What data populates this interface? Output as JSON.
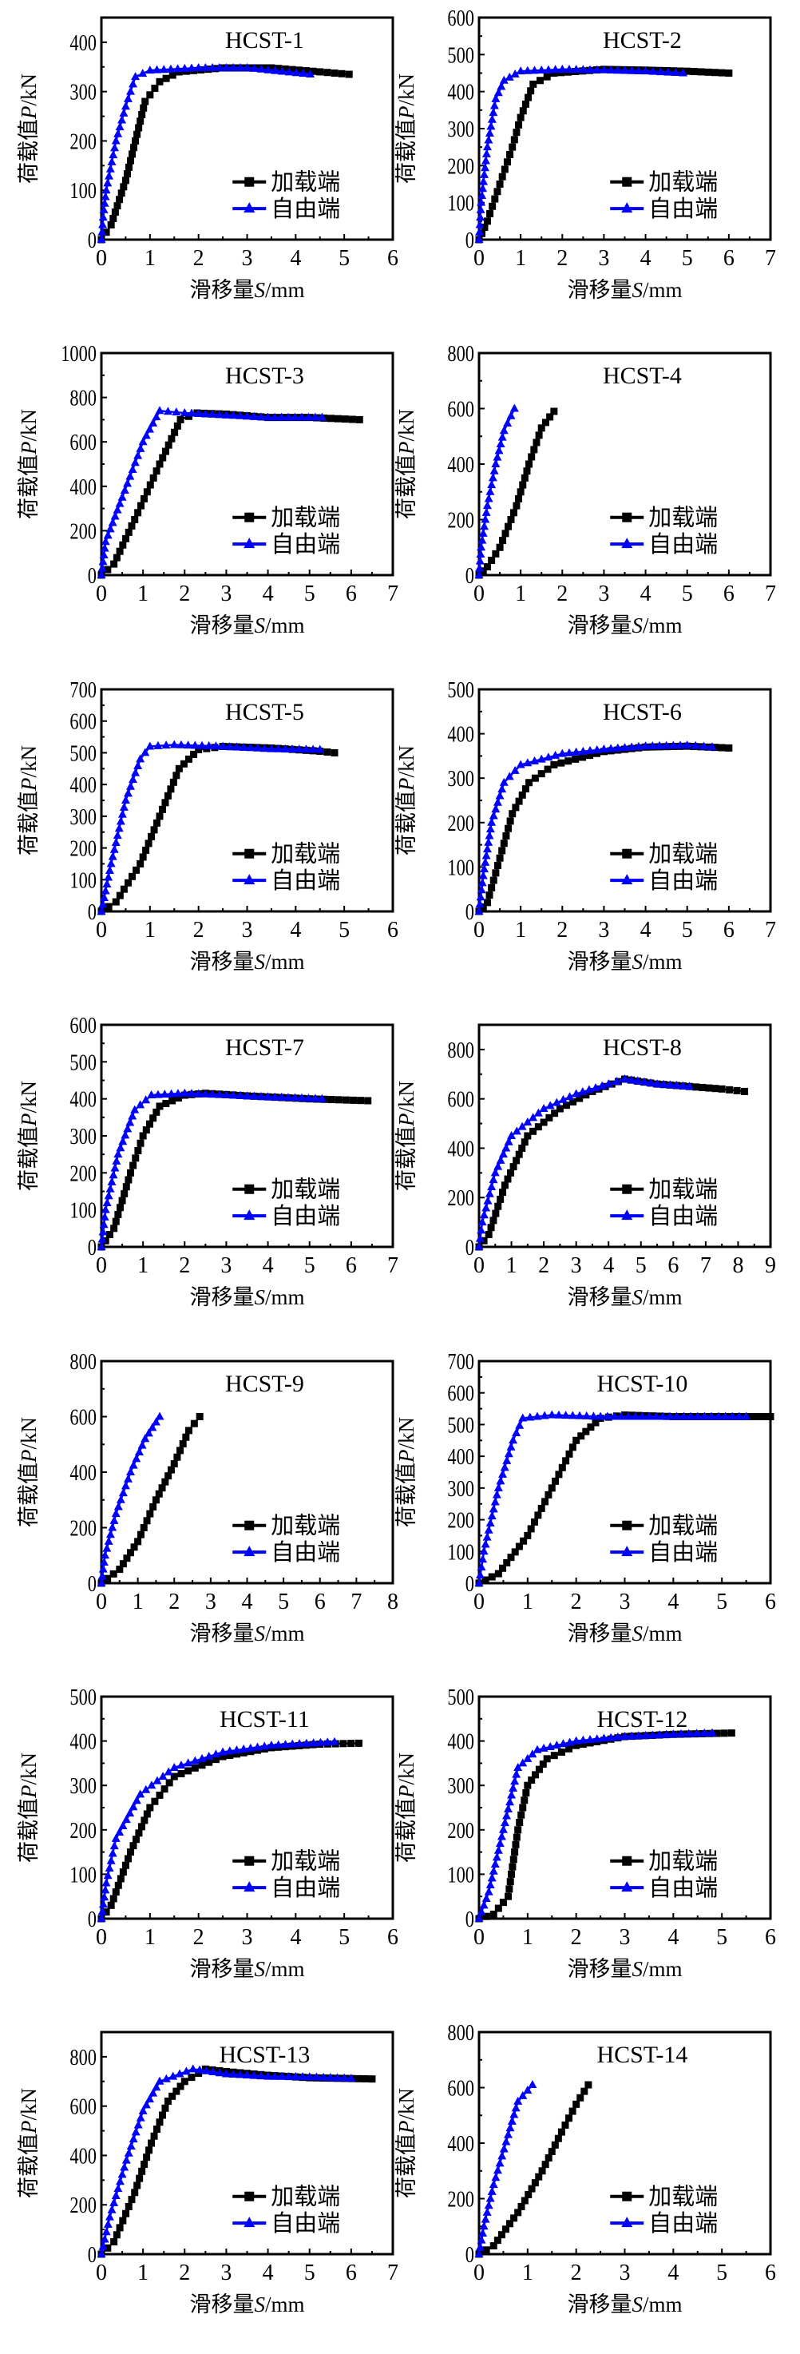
{
  "common": {
    "xlabel_cn": "滑移量",
    "xlabel_var": "S",
    "xlabel_unit": "/mm",
    "ylabel_cn": "荷载值",
    "ylabel_var": "P",
    "ylabel_unit": "/kN",
    "legend": [
      "加载端",
      "自由端"
    ],
    "colors": {
      "loading": "#000000",
      "free": "#0000ff"
    }
  },
  "chart_data": [
    {
      "type": "line",
      "title": "HCST-1",
      "xlim": [
        0,
        6
      ],
      "xticks": [
        0,
        1,
        2,
        3,
        4,
        5,
        6
      ],
      "ylim": [
        0,
        450
      ],
      "yticks": [
        0,
        100,
        200,
        300,
        400
      ],
      "series": [
        {
          "name": "加载端",
          "x": [
            0,
            0.2,
            0.5,
            0.7,
            0.9,
            1.2,
            1.6,
            2.5,
            3.5,
            4.5,
            5.1
          ],
          "y": [
            0,
            30,
            120,
            200,
            280,
            320,
            340,
            348,
            348,
            340,
            335
          ]
        },
        {
          "name": "自由端",
          "x": [
            0,
            0.05,
            0.1,
            0.3,
            0.5,
            0.7,
            1,
            2,
            3,
            4.3
          ],
          "y": [
            0,
            60,
            100,
            200,
            270,
            330,
            343,
            348,
            348,
            335
          ]
        }
      ]
    },
    {
      "type": "line",
      "title": "HCST-2",
      "xlim": [
        0,
        7
      ],
      "xticks": [
        0,
        1,
        2,
        3,
        4,
        5,
        6,
        7
      ],
      "ylim": [
        0,
        600
      ],
      "yticks": [
        0,
        100,
        200,
        300,
        400,
        500,
        600
      ],
      "series": [
        {
          "name": "加载端",
          "x": [
            0,
            0.2,
            0.5,
            0.8,
            1,
            1.3,
            1.8,
            3,
            4,
            5,
            6
          ],
          "y": [
            0,
            50,
            150,
            250,
            330,
            420,
            450,
            460,
            458,
            455,
            450
          ]
        },
        {
          "name": "自由端",
          "x": [
            0,
            0.05,
            0.2,
            0.4,
            0.6,
            1,
            2,
            3,
            4,
            4.9
          ],
          "y": [
            0,
            100,
            250,
            380,
            430,
            455,
            460,
            458,
            455,
            450
          ]
        }
      ]
    },
    {
      "type": "line",
      "title": "HCST-3",
      "xlim": [
        0,
        7
      ],
      "xticks": [
        0,
        1,
        2,
        3,
        4,
        5,
        6,
        7
      ],
      "ylim": [
        0,
        1000
      ],
      "yticks": [
        0,
        200,
        400,
        600,
        800,
        1000
      ],
      "series": [
        {
          "name": "加载端",
          "x": [
            0,
            0.3,
            0.8,
            1.4,
            1.9,
            2.3,
            3,
            4,
            5,
            6.2
          ],
          "y": [
            0,
            50,
            250,
            500,
            700,
            730,
            725,
            710,
            710,
            700
          ]
        },
        {
          "name": "自由端",
          "x": [
            0,
            0.1,
            0.5,
            1,
            1.4,
            2,
            3,
            4,
            5.3
          ],
          "y": [
            0,
            150,
            350,
            600,
            740,
            730,
            720,
            710,
            710
          ]
        }
      ]
    },
    {
      "type": "line",
      "title": "HCST-4",
      "xlim": [
        0,
        7
      ],
      "xticks": [
        0,
        1,
        2,
        3,
        4,
        5,
        6,
        7
      ],
      "ylim": [
        0,
        800
      ],
      "yticks": [
        0,
        200,
        400,
        600,
        800
      ],
      "series": [
        {
          "name": "加载端",
          "x": [
            0,
            0.2,
            0.5,
            0.9,
            1.2,
            1.5,
            1.8
          ],
          "y": [
            0,
            30,
            100,
            250,
            400,
            530,
            590
          ]
        },
        {
          "name": "自由端",
          "x": [
            0,
            0.05,
            0.2,
            0.4,
            0.6,
            0.85
          ],
          "y": [
            0,
            100,
            250,
            400,
            520,
            600
          ]
        }
      ]
    },
    {
      "type": "line",
      "title": "HCST-5",
      "xlim": [
        0,
        6
      ],
      "xticks": [
        0,
        1,
        2,
        3,
        4,
        5,
        6
      ],
      "ylim": [
        0,
        700
      ],
      "yticks": [
        0,
        100,
        200,
        300,
        400,
        500,
        600,
        700
      ],
      "series": [
        {
          "name": "加载端",
          "x": [
            0,
            0.3,
            0.8,
            1.2,
            1.6,
            2,
            2.5,
            3.5,
            4.5,
            4.8
          ],
          "y": [
            0,
            30,
            150,
            300,
            450,
            510,
            520,
            515,
            505,
            500
          ]
        },
        {
          "name": "自由端",
          "x": [
            0,
            0.2,
            0.5,
            0.8,
            1,
            1.5,
            2.5,
            3.5,
            4.5
          ],
          "y": [
            0,
            150,
            350,
            480,
            520,
            525,
            520,
            512,
            510
          ]
        }
      ]
    },
    {
      "type": "line",
      "title": "HCST-6",
      "xlim": [
        0,
        7
      ],
      "xticks": [
        0,
        1,
        2,
        3,
        4,
        5,
        6,
        7
      ],
      "ylim": [
        0,
        500
      ],
      "yticks": [
        0,
        100,
        200,
        300,
        400,
        500
      ],
      "series": [
        {
          "name": "加载端",
          "x": [
            0,
            0.2,
            0.5,
            0.8,
            1.2,
            1.8,
            3,
            4,
            5,
            6
          ],
          "y": [
            0,
            20,
            120,
            220,
            290,
            330,
            360,
            370,
            372,
            368
          ]
        },
        {
          "name": "自由端",
          "x": [
            0,
            0.1,
            0.3,
            0.6,
            1,
            2,
            3,
            4,
            5,
            5.6
          ],
          "y": [
            0,
            80,
            200,
            290,
            330,
            355,
            365,
            372,
            374,
            370
          ]
        }
      ]
    },
    {
      "type": "line",
      "title": "HCST-7",
      "xlim": [
        0,
        7
      ],
      "xticks": [
        0,
        1,
        2,
        3,
        4,
        5,
        6,
        7
      ],
      "ylim": [
        0,
        600
      ],
      "yticks": [
        0,
        100,
        200,
        300,
        400,
        500,
        600
      ],
      "series": [
        {
          "name": "加载端",
          "x": [
            0,
            0.3,
            0.7,
            1,
            1.4,
            2,
            2.5,
            3.5,
            5,
            6.4
          ],
          "y": [
            0,
            50,
            200,
            300,
            380,
            410,
            415,
            408,
            400,
            395
          ]
        },
        {
          "name": "自由端",
          "x": [
            0,
            0.1,
            0.4,
            0.8,
            1.2,
            2,
            3,
            4,
            5.3
          ],
          "y": [
            0,
            100,
            250,
            370,
            410,
            415,
            410,
            405,
            400
          ]
        }
      ]
    },
    {
      "type": "line",
      "title": "HCST-8",
      "xlim": [
        0,
        9
      ],
      "xticks": [
        0,
        1,
        2,
        3,
        4,
        5,
        6,
        7,
        8,
        9
      ],
      "ylim": [
        0,
        900
      ],
      "yticks": [
        0,
        200,
        400,
        600,
        800
      ],
      "series": [
        {
          "name": "加载端",
          "x": [
            0,
            0.3,
            0.8,
            1.5,
            2.5,
            3.5,
            4.5,
            5.5,
            6.5,
            7.5,
            8.2
          ],
          "y": [
            0,
            50,
            250,
            450,
            560,
            630,
            680,
            660,
            650,
            640,
            630
          ]
        },
        {
          "name": "自由端",
          "x": [
            0,
            0.1,
            0.5,
            1,
            2,
            3,
            4,
            4.5,
            5.5,
            6.5
          ],
          "y": [
            0,
            100,
            300,
            450,
            560,
            620,
            660,
            680,
            660,
            650
          ]
        }
      ]
    },
    {
      "type": "line",
      "title": "HCST-9",
      "xlim": [
        0,
        8
      ],
      "xticks": [
        0,
        1,
        2,
        3,
        4,
        5,
        6,
        7,
        8
      ],
      "ylim": [
        0,
        800
      ],
      "yticks": [
        0,
        200,
        400,
        600,
        800
      ],
      "series": [
        {
          "name": "加载端",
          "x": [
            0,
            0.5,
            1,
            1.5,
            2,
            2.4,
            2.7
          ],
          "y": [
            0,
            50,
            150,
            300,
            430,
            550,
            600
          ]
        },
        {
          "name": "自由端",
          "x": [
            0,
            0.1,
            0.4,
            0.8,
            1.2,
            1.6
          ],
          "y": [
            0,
            100,
            250,
            400,
            520,
            600
          ]
        }
      ]
    },
    {
      "type": "line",
      "title": "HCST-10",
      "xlim": [
        0,
        6
      ],
      "xticks": [
        0,
        1,
        2,
        3,
        4,
        5,
        6
      ],
      "ylim": [
        0,
        700
      ],
      "yticks": [
        0,
        100,
        200,
        300,
        400,
        500,
        600,
        700
      ],
      "series": [
        {
          "name": "加载端",
          "x": [
            0,
            0.4,
            1,
            1.5,
            2,
            2.5,
            3,
            4,
            5,
            6
          ],
          "y": [
            0,
            30,
            150,
            300,
            450,
            520,
            530,
            525,
            525,
            525
          ]
        },
        {
          "name": "自由端",
          "x": [
            0,
            0.1,
            0.4,
            0.7,
            0.9,
            1.5,
            2.5,
            3.5,
            4.5,
            5.5
          ],
          "y": [
            0,
            100,
            300,
            450,
            520,
            530,
            525,
            525,
            525,
            525
          ]
        }
      ]
    },
    {
      "type": "line",
      "title": "HCST-11",
      "xlim": [
        0,
        6
      ],
      "xticks": [
        0,
        1,
        2,
        3,
        4,
        5,
        6
      ],
      "ylim": [
        0,
        500
      ],
      "yticks": [
        0,
        100,
        200,
        300,
        400,
        500
      ],
      "series": [
        {
          "name": "加载端",
          "x": [
            0,
            0.2,
            0.6,
            1,
            1.5,
            2.5,
            3.5,
            4.5,
            5.3
          ],
          "y": [
            0,
            30,
            150,
            250,
            320,
            365,
            385,
            393,
            395
          ]
        },
        {
          "name": "自由端",
          "x": [
            0,
            0.1,
            0.3,
            0.8,
            1.5,
            2.5,
            3.5,
            4.8
          ],
          "y": [
            0,
            80,
            180,
            280,
            340,
            375,
            390,
            398
          ]
        }
      ]
    },
    {
      "type": "line",
      "title": "HCST-12",
      "xlim": [
        0,
        6
      ],
      "xticks": [
        0,
        1,
        2,
        3,
        4,
        5,
        6
      ],
      "ylim": [
        0,
        500
      ],
      "yticks": [
        0,
        100,
        200,
        300,
        400,
        500
      ],
      "series": [
        {
          "name": "加载端",
          "x": [
            0,
            0.3,
            0.6,
            0.8,
            1,
            1.4,
            2,
            3,
            4,
            5.2
          ],
          "y": [
            0,
            10,
            50,
            200,
            300,
            360,
            390,
            410,
            415,
            418
          ]
        },
        {
          "name": "自由端",
          "x": [
            0,
            0.2,
            0.5,
            0.8,
            1.2,
            2,
            3,
            4,
            4.8
          ],
          "y": [
            0,
            60,
            200,
            340,
            380,
            400,
            410,
            415,
            418
          ]
        }
      ]
    },
    {
      "type": "line",
      "title": "HCST-13",
      "xlim": [
        0,
        7
      ],
      "xticks": [
        0,
        1,
        2,
        3,
        4,
        5,
        6,
        7
      ],
      "ylim": [
        0,
        900
      ],
      "yticks": [
        0,
        200,
        400,
        600,
        800
      ],
      "series": [
        {
          "name": "加载端",
          "x": [
            0,
            0.3,
            0.8,
            1.2,
            1.6,
            2,
            2.5,
            3,
            4,
            5,
            6.5
          ],
          "y": [
            0,
            50,
            250,
            450,
            620,
            700,
            750,
            740,
            725,
            715,
            710
          ]
        },
        {
          "name": "自由端",
          "x": [
            0,
            0.2,
            0.6,
            1,
            1.4,
            2.2,
            3,
            4,
            5,
            6
          ],
          "y": [
            0,
            150,
            380,
            580,
            700,
            750,
            730,
            720,
            718,
            712
          ]
        }
      ]
    },
    {
      "type": "line",
      "title": "HCST-14",
      "xlim": [
        0,
        6
      ],
      "xticks": [
        0,
        1,
        2,
        3,
        4,
        5,
        6
      ],
      "ylim": [
        0,
        800
      ],
      "yticks": [
        0,
        200,
        400,
        600,
        800
      ],
      "series": [
        {
          "name": "加载端",
          "x": [
            0,
            0.3,
            0.8,
            1.3,
            1.7,
            2,
            2.25
          ],
          "y": [
            0,
            30,
            150,
            300,
            440,
            540,
            610
          ]
        },
        {
          "name": "自由端",
          "x": [
            0,
            0.1,
            0.3,
            0.6,
            0.8,
            1.1
          ],
          "y": [
            0,
            100,
            250,
            430,
            550,
            610
          ]
        }
      ]
    }
  ]
}
